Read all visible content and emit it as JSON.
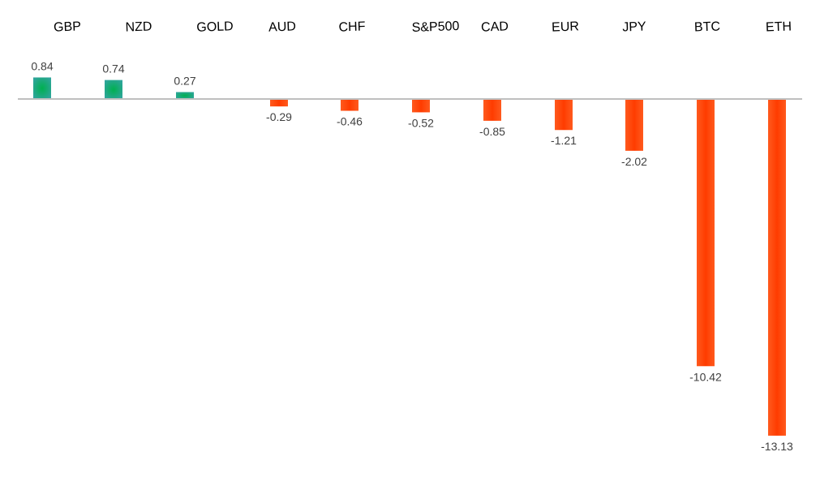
{
  "chart_data": {
    "type": "bar",
    "title": "",
    "xlabel": "",
    "ylabel": "",
    "categories": [
      "GBP",
      "NZD",
      "GOLD",
      "AUD",
      "CHF",
      "S&P500",
      "CAD",
      "EUR",
      "JPY",
      "BTC",
      "ETH"
    ],
    "values": [
      0.84,
      0.74,
      0.27,
      -0.29,
      -0.46,
      -0.52,
      -0.85,
      -1.21,
      -2.02,
      -10.42,
      -13.13
    ],
    "value_labels": [
      "0.84",
      "0.74",
      "0.27",
      "-0.29",
      "-0.46",
      "-0.52",
      "-0.85",
      "-1.21",
      "-2.02",
      "-10.42",
      "-13.13"
    ],
    "ylim": [
      -14,
      1.5
    ],
    "grid": false,
    "legend": "none",
    "colors": {
      "positive": "#00b050",
      "positive_edge": "#2ea59a",
      "negative": "#ff3c00",
      "negative_edge": "#ff5a1e",
      "axis": "#bfbfbf"
    }
  }
}
